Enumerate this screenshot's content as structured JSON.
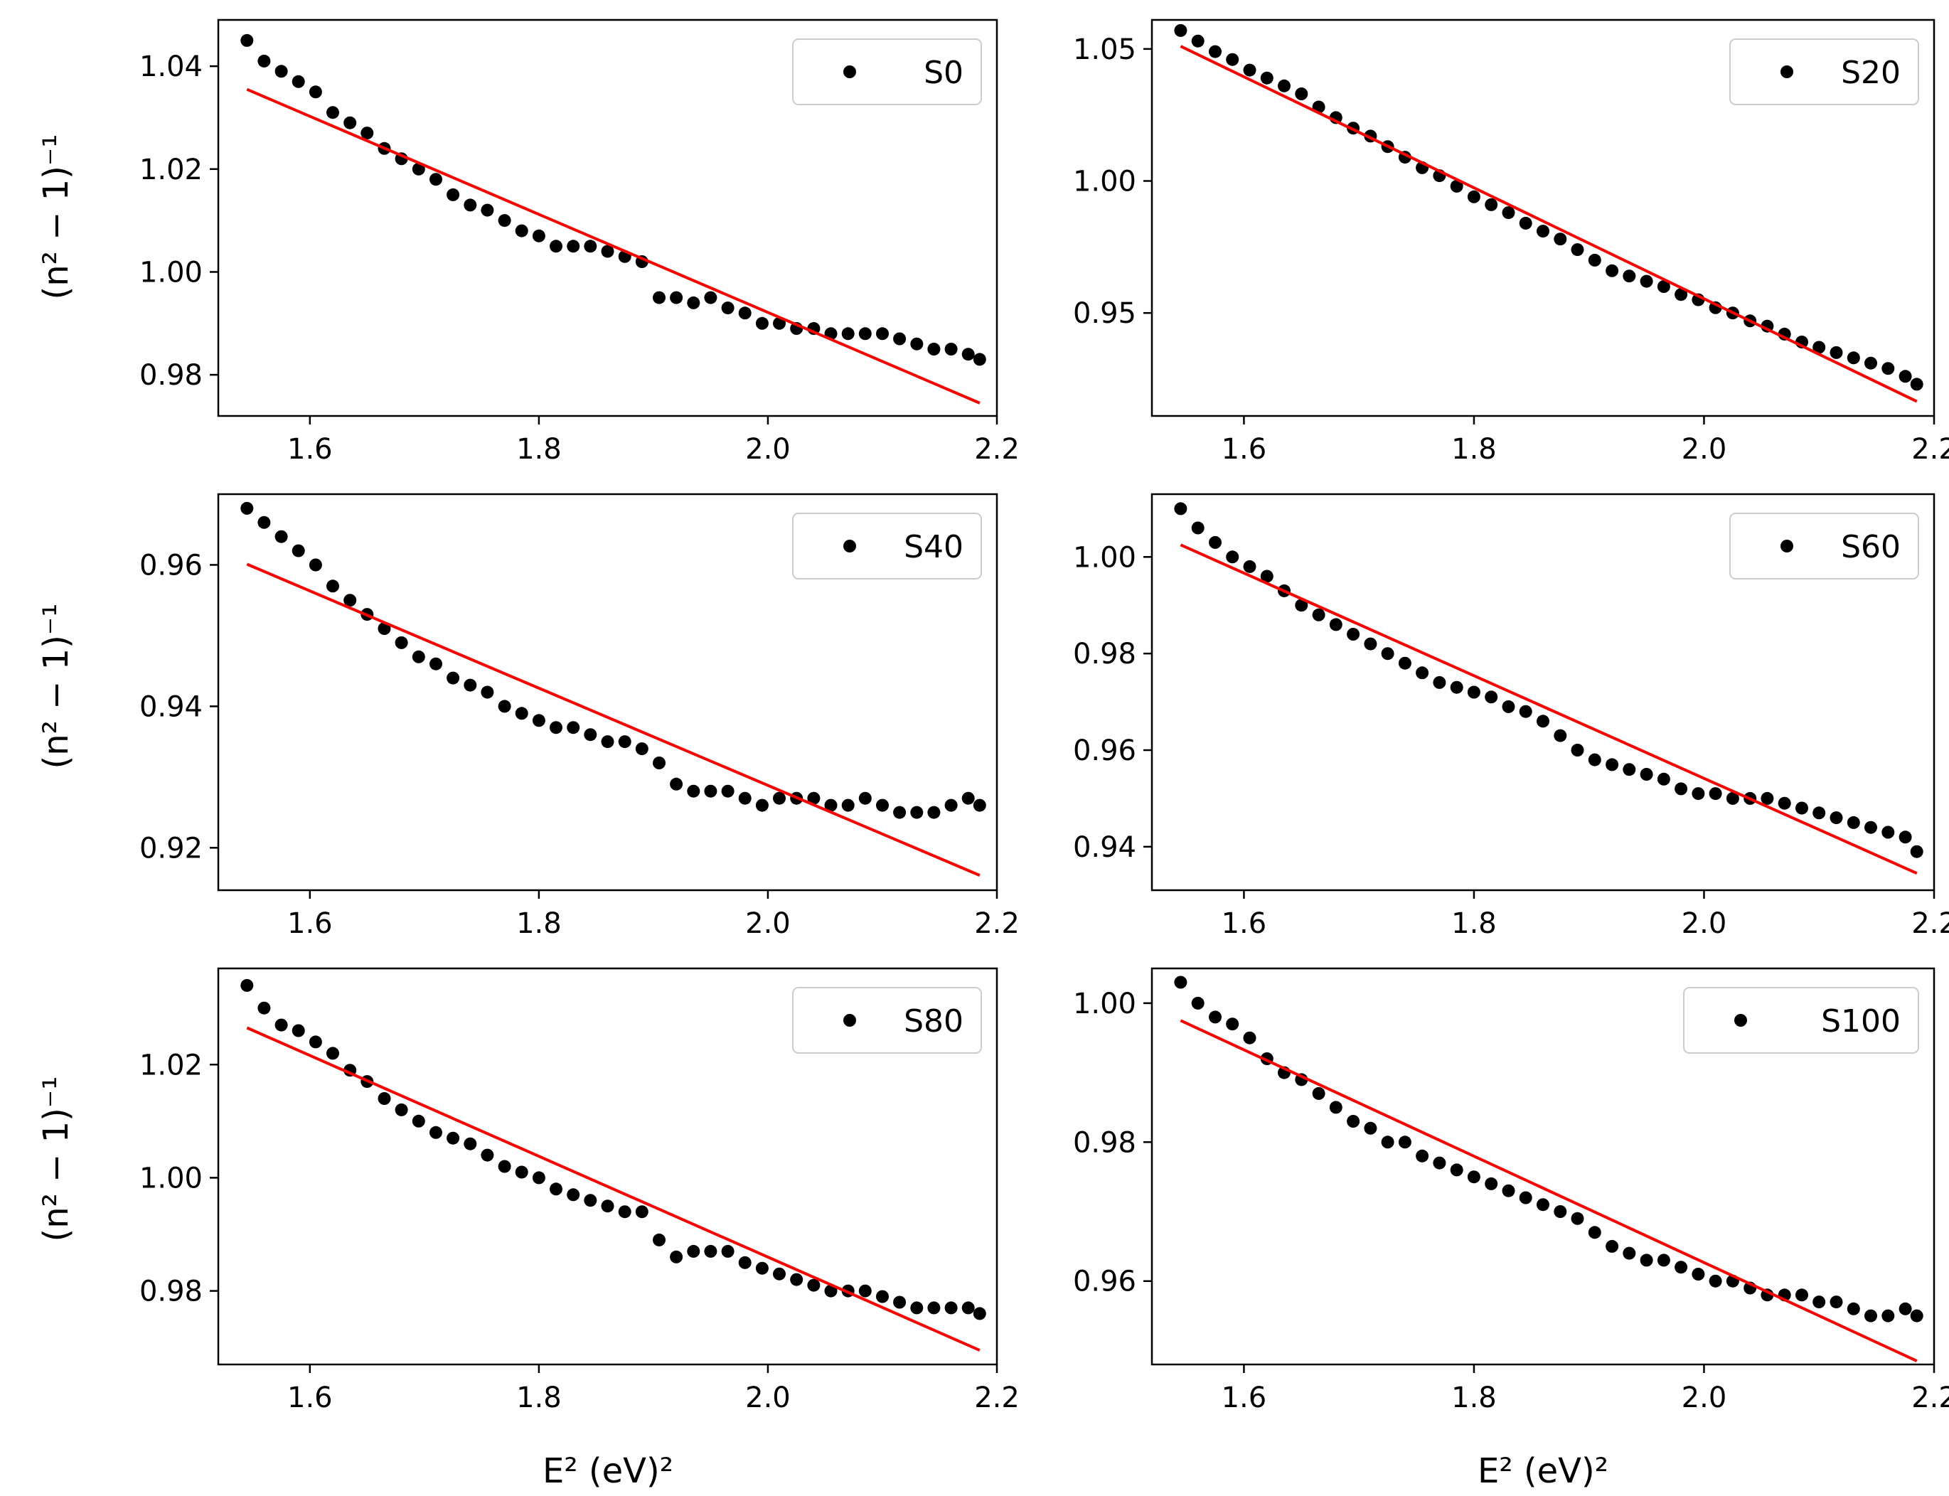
{
  "figure": {
    "ylabel_text": "(n² − 1)⁻¹",
    "xlabel_text": "E² (eV)²"
  },
  "chart_data": [
    {
      "type": "scatter",
      "legend": "S0",
      "legend_position": "top-right",
      "xlim": [
        1.52,
        2.2
      ],
      "ylim": [
        0.972,
        1.049
      ],
      "xticks": [
        1.6,
        1.8,
        2.0,
        2.2
      ],
      "xtick_labels": [
        "1.6",
        "1.8",
        "2.0",
        "2.2"
      ],
      "yticks": [
        0.98,
        1.0,
        1.02,
        1.04
      ],
      "ytick_labels": [
        "0.98",
        "1.00",
        "1.02",
        "1.04"
      ],
      "ylabel": "(n² − 1)⁻¹",
      "xlabel": "",
      "points_x": [
        1.545,
        1.56,
        1.575,
        1.59,
        1.605,
        1.62,
        1.635,
        1.65,
        1.665,
        1.68,
        1.695,
        1.71,
        1.725,
        1.74,
        1.755,
        1.77,
        1.785,
        1.8,
        1.815,
        1.83,
        1.845,
        1.86,
        1.875,
        1.89,
        1.905,
        1.92,
        1.935,
        1.95,
        1.965,
        1.98,
        1.995,
        2.01,
        2.025,
        2.04,
        2.055,
        2.07,
        2.085,
        2.1,
        2.115,
        2.13,
        2.145,
        2.16,
        2.175,
        2.185
      ],
      "points_y": [
        1.045,
        1.041,
        1.039,
        1.037,
        1.035,
        1.031,
        1.029,
        1.027,
        1.024,
        1.022,
        1.02,
        1.018,
        1.015,
        1.013,
        1.012,
        1.01,
        1.008,
        1.007,
        1.005,
        1.005,
        1.005,
        1.004,
        1.003,
        1.002,
        0.995,
        0.995,
        0.994,
        0.995,
        0.993,
        0.992,
        0.99,
        0.99,
        0.989,
        0.989,
        0.988,
        0.988,
        0.988,
        0.988,
        0.987,
        0.986,
        0.985,
        0.985,
        0.984,
        0.983
      ],
      "fit": {
        "x": [
          1.545,
          2.185
        ],
        "y": [
          1.0355,
          0.9745
        ]
      }
    },
    {
      "type": "scatter",
      "legend": "S20",
      "legend_position": "top-right",
      "xlim": [
        1.52,
        2.2
      ],
      "ylim": [
        0.911,
        1.061
      ],
      "xticks": [
        1.6,
        1.8,
        2.0,
        2.2
      ],
      "xtick_labels": [
        "1.6",
        "1.8",
        "2.0",
        "2.2"
      ],
      "yticks": [
        0.95,
        1.0,
        1.05
      ],
      "ytick_labels": [
        "0.95",
        "1.00",
        "1.05"
      ],
      "ylabel": "",
      "xlabel": "",
      "points_x": [
        1.545,
        1.56,
        1.575,
        1.59,
        1.605,
        1.62,
        1.635,
        1.65,
        1.665,
        1.68,
        1.695,
        1.71,
        1.725,
        1.74,
        1.755,
        1.77,
        1.785,
        1.8,
        1.815,
        1.83,
        1.845,
        1.86,
        1.875,
        1.89,
        1.905,
        1.92,
        1.935,
        1.95,
        1.965,
        1.98,
        1.995,
        2.01,
        2.025,
        2.04,
        2.055,
        2.07,
        2.085,
        2.1,
        2.115,
        2.13,
        2.145,
        2.16,
        2.175,
        2.185
      ],
      "points_y": [
        1.057,
        1.053,
        1.049,
        1.046,
        1.042,
        1.039,
        1.036,
        1.033,
        1.028,
        1.024,
        1.02,
        1.017,
        1.013,
        1.009,
        1.005,
        1.002,
        0.998,
        0.994,
        0.991,
        0.988,
        0.984,
        0.981,
        0.978,
        0.974,
        0.97,
        0.966,
        0.964,
        0.962,
        0.96,
        0.957,
        0.955,
        0.952,
        0.95,
        0.947,
        0.945,
        0.942,
        0.939,
        0.937,
        0.935,
        0.933,
        0.931,
        0.929,
        0.926,
        0.923
      ],
      "fit": {
        "x": [
          1.545,
          2.185
        ],
        "y": [
          1.051,
          0.9165
        ]
      }
    },
    {
      "type": "scatter",
      "legend": "S40",
      "legend_position": "top-right",
      "xlim": [
        1.52,
        2.2
      ],
      "ylim": [
        0.914,
        0.97
      ],
      "xticks": [
        1.6,
        1.8,
        2.0,
        2.2
      ],
      "xtick_labels": [
        "1.6",
        "1.8",
        "2.0",
        "2.2"
      ],
      "yticks": [
        0.92,
        0.94,
        0.96
      ],
      "ytick_labels": [
        "0.92",
        "0.94",
        "0.96"
      ],
      "ylabel": "(n² − 1)⁻¹",
      "xlabel": "",
      "points_x": [
        1.545,
        1.56,
        1.575,
        1.59,
        1.605,
        1.62,
        1.635,
        1.65,
        1.665,
        1.68,
        1.695,
        1.71,
        1.725,
        1.74,
        1.755,
        1.77,
        1.785,
        1.8,
        1.815,
        1.83,
        1.845,
        1.86,
        1.875,
        1.89,
        1.905,
        1.92,
        1.935,
        1.95,
        1.965,
        1.98,
        1.995,
        2.01,
        2.025,
        2.04,
        2.055,
        2.07,
        2.085,
        2.1,
        2.115,
        2.13,
        2.145,
        2.16,
        2.175,
        2.185
      ],
      "points_y": [
        0.968,
        0.966,
        0.964,
        0.962,
        0.96,
        0.957,
        0.955,
        0.953,
        0.951,
        0.949,
        0.947,
        0.946,
        0.944,
        0.943,
        0.942,
        0.94,
        0.939,
        0.938,
        0.937,
        0.937,
        0.936,
        0.935,
        0.935,
        0.934,
        0.932,
        0.929,
        0.928,
        0.928,
        0.928,
        0.927,
        0.926,
        0.927,
        0.927,
        0.927,
        0.926,
        0.926,
        0.927,
        0.926,
        0.925,
        0.925,
        0.925,
        0.926,
        0.927,
        0.926
      ],
      "fit": {
        "x": [
          1.545,
          2.185
        ],
        "y": [
          0.9601,
          0.9161
        ]
      }
    },
    {
      "type": "scatter",
      "legend": "S60",
      "legend_position": "top-right",
      "xlim": [
        1.52,
        2.2
      ],
      "ylim": [
        0.931,
        1.013
      ],
      "xticks": [
        1.6,
        1.8,
        2.0,
        2.2
      ],
      "xtick_labels": [
        "1.6",
        "1.8",
        "2.0",
        "2.2"
      ],
      "yticks": [
        0.94,
        0.96,
        0.98,
        1.0
      ],
      "ytick_labels": [
        "0.94",
        "0.96",
        "0.98",
        "1.00"
      ],
      "ylabel": "",
      "xlabel": "",
      "points_x": [
        1.545,
        1.56,
        1.575,
        1.59,
        1.605,
        1.62,
        1.635,
        1.65,
        1.665,
        1.68,
        1.695,
        1.71,
        1.725,
        1.74,
        1.755,
        1.77,
        1.785,
        1.8,
        1.815,
        1.83,
        1.845,
        1.86,
        1.875,
        1.89,
        1.905,
        1.92,
        1.935,
        1.95,
        1.965,
        1.98,
        1.995,
        2.01,
        2.025,
        2.04,
        2.055,
        2.07,
        2.085,
        2.1,
        2.115,
        2.13,
        2.145,
        2.16,
        2.175,
        2.185
      ],
      "points_y": [
        1.01,
        1.006,
        1.003,
        1.0,
        0.998,
        0.996,
        0.993,
        0.99,
        0.988,
        0.986,
        0.984,
        0.982,
        0.98,
        0.978,
        0.976,
        0.974,
        0.973,
        0.972,
        0.971,
        0.969,
        0.968,
        0.966,
        0.963,
        0.96,
        0.958,
        0.957,
        0.956,
        0.955,
        0.954,
        0.952,
        0.951,
        0.951,
        0.95,
        0.95,
        0.95,
        0.949,
        0.948,
        0.947,
        0.946,
        0.945,
        0.944,
        0.943,
        0.942,
        0.939
      ],
      "fit": {
        "x": [
          1.545,
          2.185
        ],
        "y": [
          1.0025,
          0.9345
        ]
      }
    },
    {
      "type": "scatter",
      "legend": "S80",
      "legend_position": "top-right",
      "xlim": [
        1.52,
        2.2
      ],
      "ylim": [
        0.967,
        1.037
      ],
      "xticks": [
        1.6,
        1.8,
        2.0,
        2.2
      ],
      "xtick_labels": [
        "1.6",
        "1.8",
        "2.0",
        "2.2"
      ],
      "yticks": [
        0.98,
        1.0,
        1.02
      ],
      "ytick_labels": [
        "0.98",
        "1.00",
        "1.02"
      ],
      "ylabel": "(n² − 1)⁻¹",
      "xlabel": "E² (eV)²",
      "points_x": [
        1.545,
        1.56,
        1.575,
        1.59,
        1.605,
        1.62,
        1.635,
        1.65,
        1.665,
        1.68,
        1.695,
        1.71,
        1.725,
        1.74,
        1.755,
        1.77,
        1.785,
        1.8,
        1.815,
        1.83,
        1.845,
        1.86,
        1.875,
        1.89,
        1.905,
        1.92,
        1.935,
        1.95,
        1.965,
        1.98,
        1.995,
        2.01,
        2.025,
        2.04,
        2.055,
        2.07,
        2.085,
        2.1,
        2.115,
        2.13,
        2.145,
        2.16,
        2.175,
        2.185
      ],
      "points_y": [
        1.034,
        1.03,
        1.027,
        1.026,
        1.024,
        1.022,
        1.019,
        1.017,
        1.014,
        1.012,
        1.01,
        1.008,
        1.007,
        1.006,
        1.004,
        1.002,
        1.001,
        1.0,
        0.998,
        0.997,
        0.996,
        0.995,
        0.994,
        0.994,
        0.989,
        0.986,
        0.987,
        0.987,
        0.987,
        0.985,
        0.984,
        0.983,
        0.982,
        0.981,
        0.98,
        0.98,
        0.98,
        0.979,
        0.978,
        0.977,
        0.977,
        0.977,
        0.977,
        0.976
      ],
      "fit": {
        "x": [
          1.545,
          2.185
        ],
        "y": [
          1.0265,
          0.9695
        ]
      }
    },
    {
      "type": "scatter",
      "legend": "S100",
      "legend_position": "top-right",
      "xlim": [
        1.52,
        2.2
      ],
      "ylim": [
        0.948,
        1.005
      ],
      "xticks": [
        1.6,
        1.8,
        2.0,
        2.2
      ],
      "xtick_labels": [
        "1.6",
        "1.8",
        "2.0",
        "2.2"
      ],
      "yticks": [
        0.96,
        0.98,
        1.0
      ],
      "ytick_labels": [
        "0.96",
        "0.98",
        "1.00"
      ],
      "ylabel": "",
      "xlabel": "E² (eV)²",
      "points_x": [
        1.545,
        1.56,
        1.575,
        1.59,
        1.605,
        1.62,
        1.635,
        1.65,
        1.665,
        1.68,
        1.695,
        1.71,
        1.725,
        1.74,
        1.755,
        1.77,
        1.785,
        1.8,
        1.815,
        1.83,
        1.845,
        1.86,
        1.875,
        1.89,
        1.905,
        1.92,
        1.935,
        1.95,
        1.965,
        1.98,
        1.995,
        2.01,
        2.025,
        2.04,
        2.055,
        2.07,
        2.085,
        2.1,
        2.115,
        2.13,
        2.145,
        2.16,
        2.175,
        2.185
      ],
      "points_y": [
        1.003,
        1.0,
        0.998,
        0.997,
        0.995,
        0.992,
        0.99,
        0.989,
        0.987,
        0.985,
        0.983,
        0.982,
        0.98,
        0.98,
        0.978,
        0.977,
        0.976,
        0.975,
        0.974,
        0.973,
        0.972,
        0.971,
        0.97,
        0.969,
        0.967,
        0.965,
        0.964,
        0.963,
        0.963,
        0.962,
        0.961,
        0.96,
        0.96,
        0.959,
        0.958,
        0.958,
        0.958,
        0.957,
        0.957,
        0.956,
        0.955,
        0.955,
        0.956,
        0.955
      ],
      "fit": {
        "x": [
          1.545,
          2.185
        ],
        "y": [
          0.9975,
          0.9485
        ]
      }
    }
  ]
}
